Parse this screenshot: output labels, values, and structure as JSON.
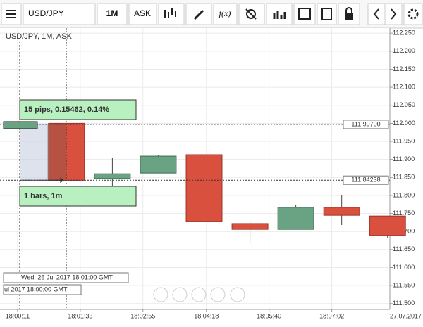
{
  "toolbar": {
    "symbol": "USD/JPY",
    "period": "1M",
    "side": "ASK",
    "fx": "f(x)"
  },
  "chart_data": {
    "type": "candlestick",
    "title": "USD/JPY, 1M, ASK",
    "x": [
      75,
      135,
      195,
      255,
      315,
      375,
      435,
      495
    ],
    "open": [
      112.0,
      111.847,
      111.862,
      111.913,
      111.722,
      111.706,
      111.767,
      111.743
    ],
    "high": [
      112.0,
      111.905,
      111.913,
      111.915,
      111.73,
      111.773,
      111.8,
      111.743
    ],
    "low": [
      111.84,
      111.825,
      111.862,
      111.728,
      111.669,
      111.706,
      111.718,
      111.681
    ],
    "close": [
      111.842,
      111.86,
      111.909,
      111.728,
      111.706,
      111.767,
      111.745,
      111.689
    ],
    "up_color": "#6aa383",
    "down_color": "#d9503f",
    "xlim": [
      -12,
      498
    ],
    "xticks": [
      {
        "value": 11,
        "label": "18:00:11"
      },
      {
        "value": 93,
        "label": "18:01:33"
      },
      {
        "value": 175,
        "label": "18:02:55"
      },
      {
        "value": 258,
        "label": "18:04:18"
      },
      {
        "value": 340,
        "label": "18:05:40"
      },
      {
        "value": 422,
        "label": "18:07:02"
      }
    ],
    "date_label": "27.07.2017",
    "ylim": [
      111.484,
      112.264
    ],
    "yticks": [
      {
        "value": 111.5,
        "label": "111.500"
      },
      {
        "value": 111.55,
        "label": "111.550"
      },
      {
        "value": 111.6,
        "label": "111.600"
      },
      {
        "value": 111.65,
        "label": "111.650"
      },
      {
        "value": 111.7,
        "label": "111.700"
      },
      {
        "value": 111.75,
        "label": "111.750"
      },
      {
        "value": 111.8,
        "label": "111.800"
      },
      {
        "value": 111.85,
        "label": "111.850"
      },
      {
        "value": 111.9,
        "label": "111.900"
      },
      {
        "value": 111.95,
        "label": "111.950"
      },
      {
        "value": 112.0,
        "label": "112.000"
      },
      {
        "value": 112.05,
        "label": "112.050"
      },
      {
        "value": 112.1,
        "label": "112.100"
      },
      {
        "value": 112.15,
        "label": "112.150"
      },
      {
        "value": 112.2,
        "label": "112.200"
      },
      {
        "value": 112.25,
        "label": "112.250"
      }
    ],
    "grid": true,
    "price_lines": [
      {
        "value": 111.997,
        "label": "111.99700"
      },
      {
        "value": 111.84238,
        "label": "111.84238"
      }
    ],
    "measure_top": "15 pips, 0.15462, 0.14%",
    "measure_bottom": "1 bars, 1m",
    "time_labels": [
      "Wed, 26 Jul 2017 18:01:00 GMT",
      "ul 2017 18:00:00 GMT"
    ]
  }
}
